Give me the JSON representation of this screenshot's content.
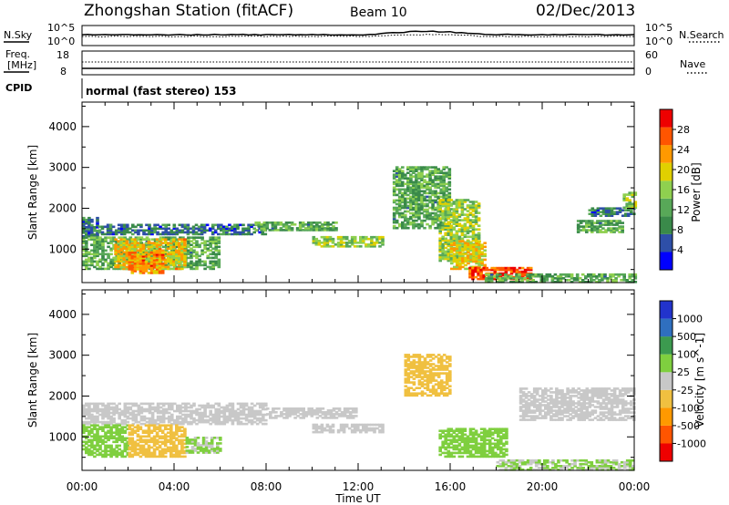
{
  "header": {
    "title": "Zhongshan Station (fitACF)",
    "beam": "Beam 10",
    "date": "02/Dec/2013"
  },
  "strip_labels": {
    "nsky": "N.Sky",
    "freq": "Freq.",
    "freq_unit": "[MHz]",
    "cpid": "CPID",
    "nsearch": "N.Search",
    "nave": "Nave",
    "mode": "normal (fast stereo) 153"
  },
  "noise_axis": {
    "left_ticks": [
      "10^5",
      "10^0"
    ],
    "right_ticks": [
      "10^5",
      "10^0"
    ]
  },
  "freq_axis": {
    "left_ticks": [
      "18",
      "8"
    ],
    "right_ticks": [
      "60",
      "0"
    ]
  },
  "x_axis": {
    "ticks": [
      "00:00",
      "04:00",
      "08:00",
      "12:00",
      "16:00",
      "20:00",
      "00:00"
    ],
    "label": "Time UT"
  },
  "colors": {
    "power": [
      "#0000ff",
      "#2e4fa8",
      "#3a8a4a",
      "#58a858",
      "#8fd04f",
      "#e0d000",
      "#ff9900",
      "#ff5500",
      "#ee0000"
    ],
    "velocity": [
      "#ee0000",
      "#ff5500",
      "#ff9900",
      "#f0c040",
      "#c8c8c8",
      "#7fcf3f",
      "#3c9a4f",
      "#2f6fbf",
      "#2233cc"
    ]
  },
  "chart_data": [
    {
      "type": "heatmap",
      "ylabel": "Slant Range [km]",
      "xlabel": "",
      "ylim": [
        180,
        4600
      ],
      "xlim_hours": [
        0,
        24
      ],
      "yticks": [
        "1000",
        "2000",
        "3000",
        "4000"
      ],
      "colorbar": {
        "label": "Power [dB]",
        "ticks": [
          "4",
          "8",
          "12",
          "16",
          "20",
          "24",
          "28"
        ],
        "range": [
          0,
          32
        ]
      },
      "regions": [
        {
          "t": [
            0.0,
            0.7
          ],
          "r": [
            1250,
            1750
          ],
          "v": 8
        },
        {
          "t": [
            0.0,
            6.0
          ],
          "r": [
            500,
            1300
          ],
          "v": 12
        },
        {
          "t": [
            1.4,
            4.5
          ],
          "r": [
            500,
            1250
          ],
          "v": 20
        },
        {
          "t": [
            2.0,
            3.5
          ],
          "r": [
            400,
            900
          ],
          "v": 24
        },
        {
          "t": [
            0.7,
            8.0
          ],
          "r": [
            1350,
            1600
          ],
          "v": 8
        },
        {
          "t": [
            7.5,
            11.0
          ],
          "r": [
            1450,
            1650
          ],
          "v": 12
        },
        {
          "t": [
            10.0,
            13.0
          ],
          "r": [
            1050,
            1300
          ],
          "v": 16
        },
        {
          "t": [
            13.5,
            16.0
          ],
          "r": [
            1500,
            3000
          ],
          "v": 12
        },
        {
          "t": [
            15.5,
            17.2
          ],
          "r": [
            700,
            2200
          ],
          "v": 16
        },
        {
          "t": [
            16.0,
            17.5
          ],
          "r": [
            500,
            1200
          ],
          "v": 20
        },
        {
          "t": [
            16.8,
            19.5
          ],
          "r": [
            250,
            550
          ],
          "v": 28
        },
        {
          "t": [
            17.5,
            24.0
          ],
          "r": [
            180,
            400
          ],
          "v": 12
        },
        {
          "t": [
            21.5,
            23.5
          ],
          "r": [
            1400,
            1700
          ],
          "v": 12
        },
        {
          "t": [
            22.0,
            24.0
          ],
          "r": [
            1800,
            2000
          ],
          "v": 8
        },
        {
          "t": [
            23.5,
            24.0
          ],
          "r": [
            2000,
            2400
          ],
          "v": 16
        }
      ]
    },
    {
      "type": "heatmap",
      "ylabel": "Slant Range [km]",
      "xlabel": "Time UT",
      "ylim": [
        180,
        4600
      ],
      "xlim_hours": [
        0,
        24
      ],
      "yticks": [
        "1000",
        "2000",
        "3000",
        "4000"
      ],
      "colorbar": {
        "label": "Velocity [m s^-1]",
        "ticks": [
          "1000",
          "500",
          "100",
          "25",
          "-25",
          "-100",
          "-500",
          "-1000"
        ],
        "range": [
          -1200,
          1200
        ]
      },
      "regions": [
        {
          "t": [
            0.0,
            8.0
          ],
          "r": [
            1300,
            1800
          ],
          "v": 0
        },
        {
          "t": [
            0.0,
            2.0
          ],
          "r": [
            500,
            1300
          ],
          "v": 300
        },
        {
          "t": [
            2.0,
            4.5
          ],
          "r": [
            500,
            1300
          ],
          "v": -300
        },
        {
          "t": [
            4.5,
            6.0
          ],
          "r": [
            600,
            1000
          ],
          "v": 150
        },
        {
          "t": [
            8.0,
            12.0
          ],
          "r": [
            1450,
            1700
          ],
          "v": 0
        },
        {
          "t": [
            10.0,
            13.0
          ],
          "r": [
            1100,
            1300
          ],
          "v": 0
        },
        {
          "t": [
            14.0,
            16.0
          ],
          "r": [
            2000,
            3000
          ],
          "v": -300
        },
        {
          "t": [
            15.5,
            18.5
          ],
          "r": [
            500,
            1200
          ],
          "v": 300
        },
        {
          "t": [
            18.0,
            24.0
          ],
          "r": [
            180,
            450
          ],
          "v": 150
        },
        {
          "t": [
            19.0,
            24.0
          ],
          "r": [
            1400,
            2200
          ],
          "v": 0
        }
      ]
    }
  ]
}
